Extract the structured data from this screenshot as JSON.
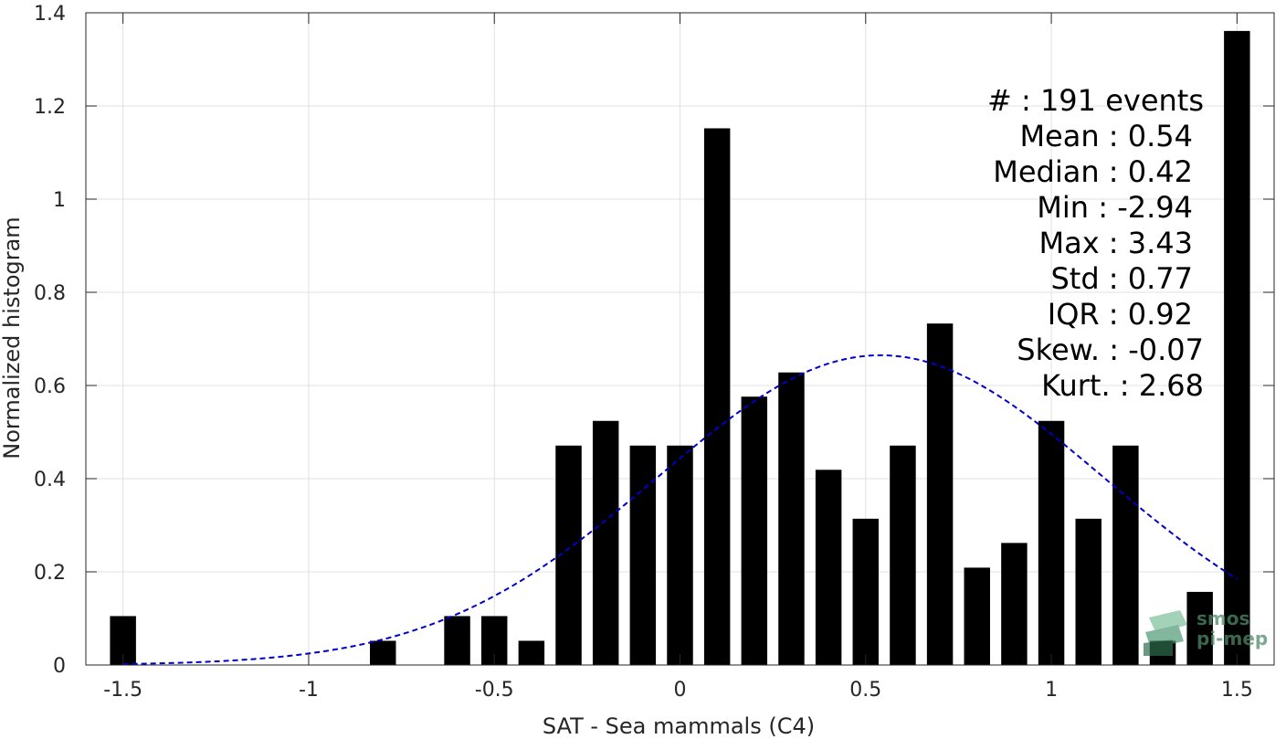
{
  "chart_data": {
    "type": "bar",
    "xlabel": "SAT - Sea mammals (C4)",
    "ylabel": "Normalized histogram",
    "xlim": [
      -1.6,
      1.6
    ],
    "ylim": [
      0,
      1.4
    ],
    "xticks": [
      -1.5,
      -1,
      -0.5,
      0,
      0.5,
      1,
      1.5
    ],
    "xtick_labels": [
      "-1.5",
      "-1",
      "-0.5",
      "0",
      "0.5",
      "1",
      "1.5"
    ],
    "yticks": [
      0,
      0.2,
      0.4,
      0.6,
      0.8,
      1,
      1.2,
      1.4
    ],
    "ytick_labels": [
      "0",
      "0.2",
      "0.4",
      "0.6",
      "0.8",
      "1",
      "1.2",
      "1.4"
    ],
    "grid": true,
    "bar_color": "#000000",
    "bars": [
      {
        "x": -1.5,
        "y": 0.105
      },
      {
        "x": -1.4,
        "y": 0
      },
      {
        "x": -1.3,
        "y": 0
      },
      {
        "x": -1.2,
        "y": 0
      },
      {
        "x": -1.1,
        "y": 0
      },
      {
        "x": -1.0,
        "y": 0
      },
      {
        "x": -0.9,
        "y": 0
      },
      {
        "x": -0.8,
        "y": 0.052
      },
      {
        "x": -0.7,
        "y": 0
      },
      {
        "x": -0.6,
        "y": 0.105
      },
      {
        "x": -0.5,
        "y": 0.105
      },
      {
        "x": -0.4,
        "y": 0.052
      },
      {
        "x": -0.3,
        "y": 0.471
      },
      {
        "x": -0.2,
        "y": 0.524
      },
      {
        "x": -0.1,
        "y": 0.471
      },
      {
        "x": 0.0,
        "y": 0.471
      },
      {
        "x": 0.1,
        "y": 1.152
      },
      {
        "x": 0.2,
        "y": 0.576
      },
      {
        "x": 0.3,
        "y": 0.628
      },
      {
        "x": 0.4,
        "y": 0.419
      },
      {
        "x": 0.5,
        "y": 0.314
      },
      {
        "x": 0.6,
        "y": 0.471
      },
      {
        "x": 0.7,
        "y": 0.733
      },
      {
        "x": 0.8,
        "y": 0.209
      },
      {
        "x": 0.9,
        "y": 0.262
      },
      {
        "x": 1.0,
        "y": 0.524
      },
      {
        "x": 1.1,
        "y": 0.314
      },
      {
        "x": 1.2,
        "y": 0.471
      },
      {
        "x": 1.3,
        "y": 0.052
      },
      {
        "x": 1.4,
        "y": 0.157
      },
      {
        "x": 1.5,
        "y": 1.361
      }
    ],
    "bar_width": 0.07,
    "fit_curve": {
      "type": "normal",
      "mean": 0.54,
      "std": 0.6,
      "peak": 0.665,
      "x_range": [
        -1.5,
        1.5
      ],
      "color": "#0000cc",
      "style": "dashed"
    }
  },
  "stats": {
    "events": "#  : 191 events",
    "mean": "Mean : 0.54",
    "median": "Median : 0.42",
    "min": "Min : -2.94",
    "max": "Max : 3.43",
    "std": "Std : 0.77",
    "iqr": "IQR : 0.92",
    "skew": "Skew. : -0.07",
    "kurt": "Kurt. : 2.68"
  },
  "logo": {
    "line1": "smos",
    "line2": "pi-mep",
    "icon": "smos-pimep-logo-icon"
  }
}
